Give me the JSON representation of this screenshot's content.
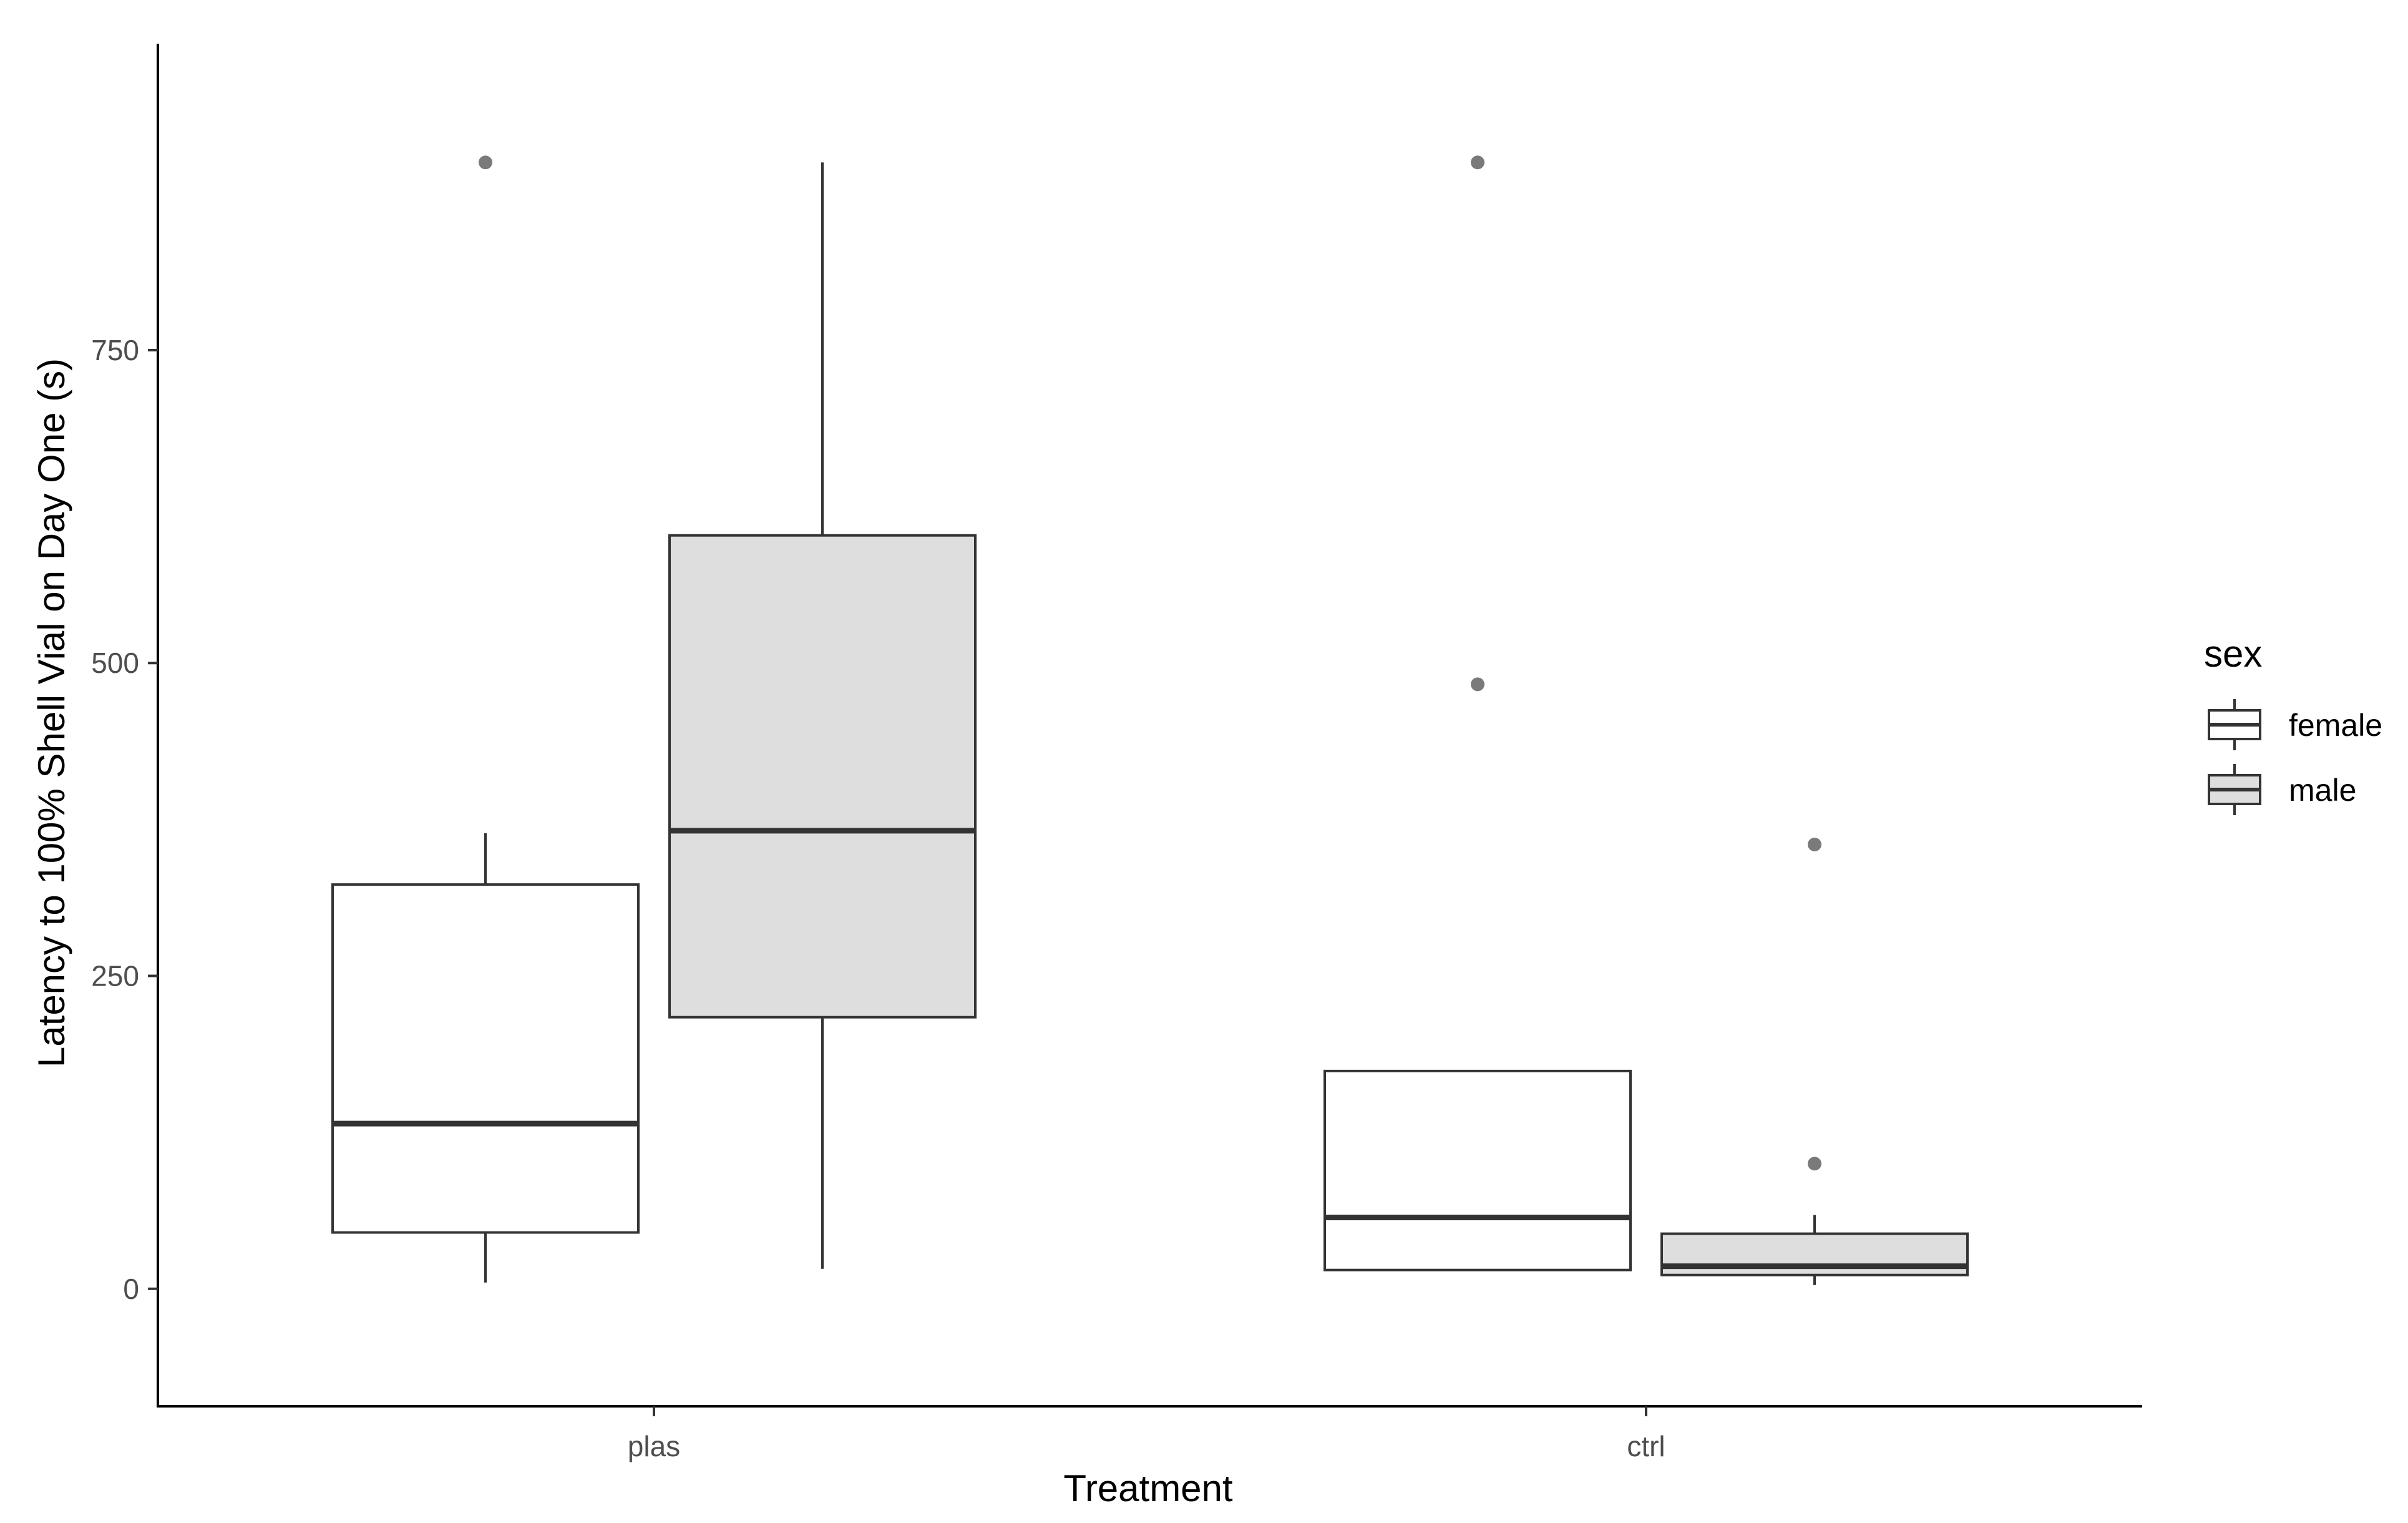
{
  "chart_data": {
    "type": "boxplot",
    "xlabel": "Treatment",
    "ylabel": "Latency to 100% Shell Vial on Day One (s)",
    "categories": [
      "plas",
      "ctrl"
    ],
    "ylim": [
      -45,
      945
    ],
    "y_ticks": [
      "0",
      "250",
      "500",
      "750"
    ],
    "grid": false,
    "legend": {
      "title": "sex",
      "position": "right",
      "entries": [
        "female",
        "male"
      ]
    },
    "series": [
      {
        "name": "female",
        "fill": "#ffffff",
        "boxes": [
          {
            "category": "plas",
            "whisker_low": 5,
            "q1": 45,
            "median": 132,
            "q3": 323,
            "whisker_high": 364,
            "outliers": [
              900
            ]
          },
          {
            "category": "ctrl",
            "whisker_low": 15,
            "q1": 15,
            "median": 57,
            "q3": 174,
            "whisker_high": 174,
            "outliers": [
              900,
              483
            ]
          }
        ]
      },
      {
        "name": "male",
        "fill": "#dedede",
        "boxes": [
          {
            "category": "plas",
            "whisker_low": 16,
            "q1": 217,
            "median": 366,
            "q3": 602,
            "whisker_high": 900,
            "outliers": []
          },
          {
            "category": "ctrl",
            "whisker_low": 3,
            "q1": 11,
            "median": 18,
            "q3": 44,
            "whisker_high": 59,
            "outliers": [
              355,
              100
            ]
          }
        ]
      }
    ],
    "colors": {
      "line": "#333333",
      "outlier": "#333333",
      "axis": "#000000"
    }
  }
}
